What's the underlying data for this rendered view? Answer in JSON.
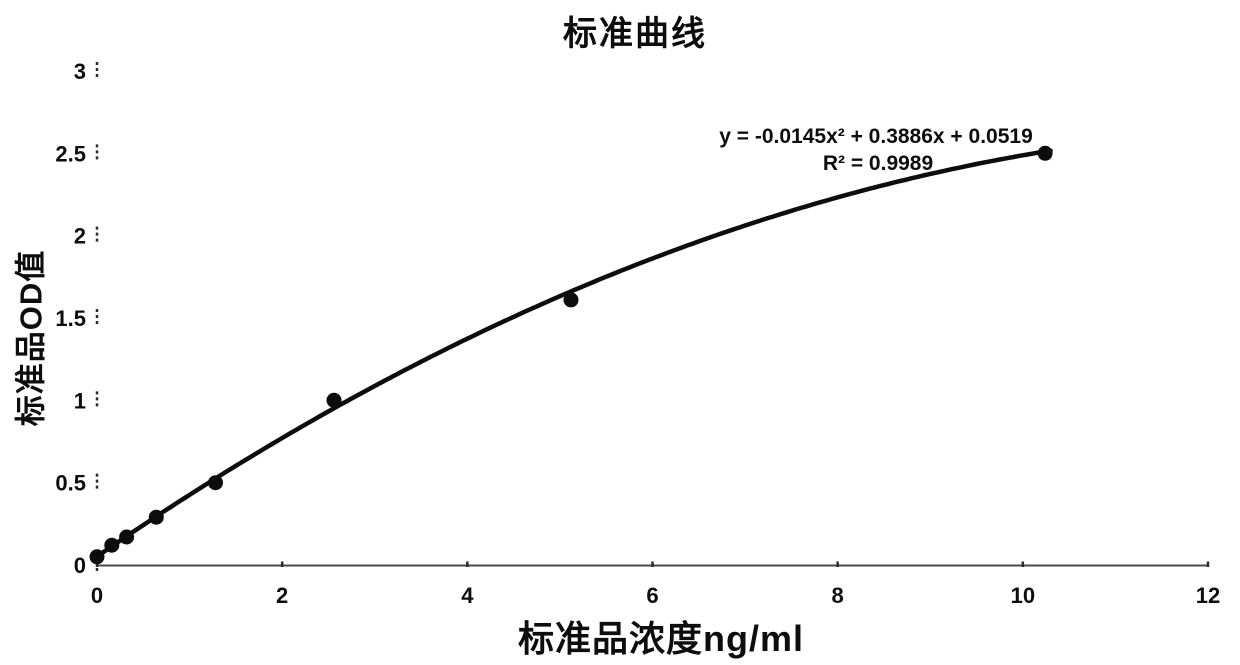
{
  "chart_data": {
    "type": "scatter",
    "title": "标准曲线",
    "xlabel": "标准品浓度ng/ml",
    "ylabel": "标准品OD值",
    "x": [
      0,
      0.16,
      0.32,
      0.64,
      1.28,
      2.56,
      5.12,
      10.24
    ],
    "y": [
      0.05,
      0.12,
      0.17,
      0.29,
      0.5,
      1.0,
      1.61,
      2.5
    ],
    "equation_label": "y = -0.0145x² + 0.3886x + 0.0519",
    "r2_label": "R² = 0.9989",
    "trendline": {
      "form": "quadratic",
      "a": -0.0145,
      "b": 0.3886,
      "c": 0.0519,
      "r_squared": 0.9989,
      "x_range": [
        0,
        10.3
      ]
    },
    "xlim": [
      0,
      12
    ],
    "ylim": [
      0,
      3
    ],
    "x_ticks": [
      0,
      2,
      4,
      6,
      8,
      10,
      12
    ],
    "y_ticks": [
      0,
      0.5,
      1,
      1.5,
      2,
      2.5,
      3
    ],
    "grid": false,
    "legend": false,
    "colors": {
      "marker": "#0d0d0d",
      "curve": "#0d0d0d",
      "axis": "#4a4a4a",
      "text": "#0d0d0d"
    }
  }
}
